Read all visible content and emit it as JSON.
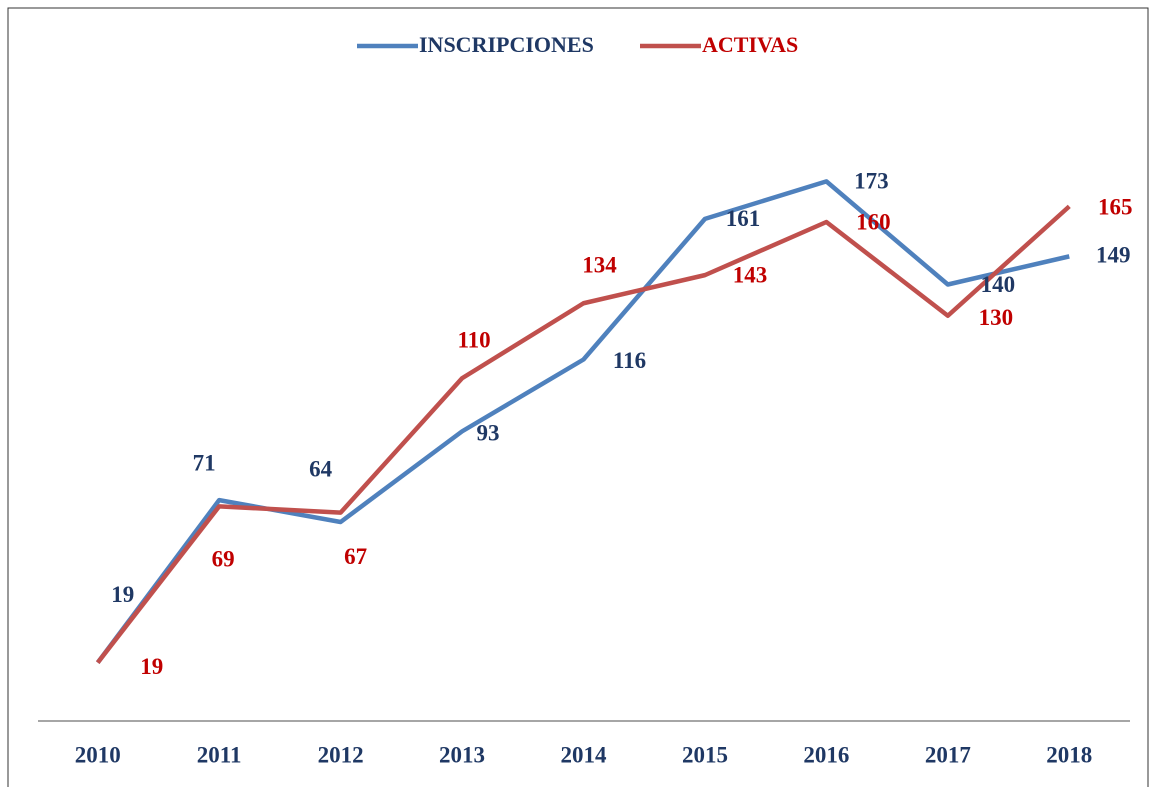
{
  "chart_data": {
    "type": "line",
    "categories": [
      "2010",
      "2011",
      "2012",
      "2013",
      "2014",
      "2015",
      "2016",
      "2017",
      "2018"
    ],
    "series": [
      {
        "name": "INSCRIPCIONES",
        "color": "#4f81bd",
        "values": [
          19,
          71,
          64,
          93,
          116,
          161,
          173,
          140,
          149
        ]
      },
      {
        "name": "ACTIVAS",
        "color": "#c0504d",
        "values": [
          19,
          69,
          67,
          110,
          134,
          143,
          160,
          130,
          165
        ]
      }
    ],
    "ylim": [
      0,
      200
    ],
    "legend": "top"
  }
}
